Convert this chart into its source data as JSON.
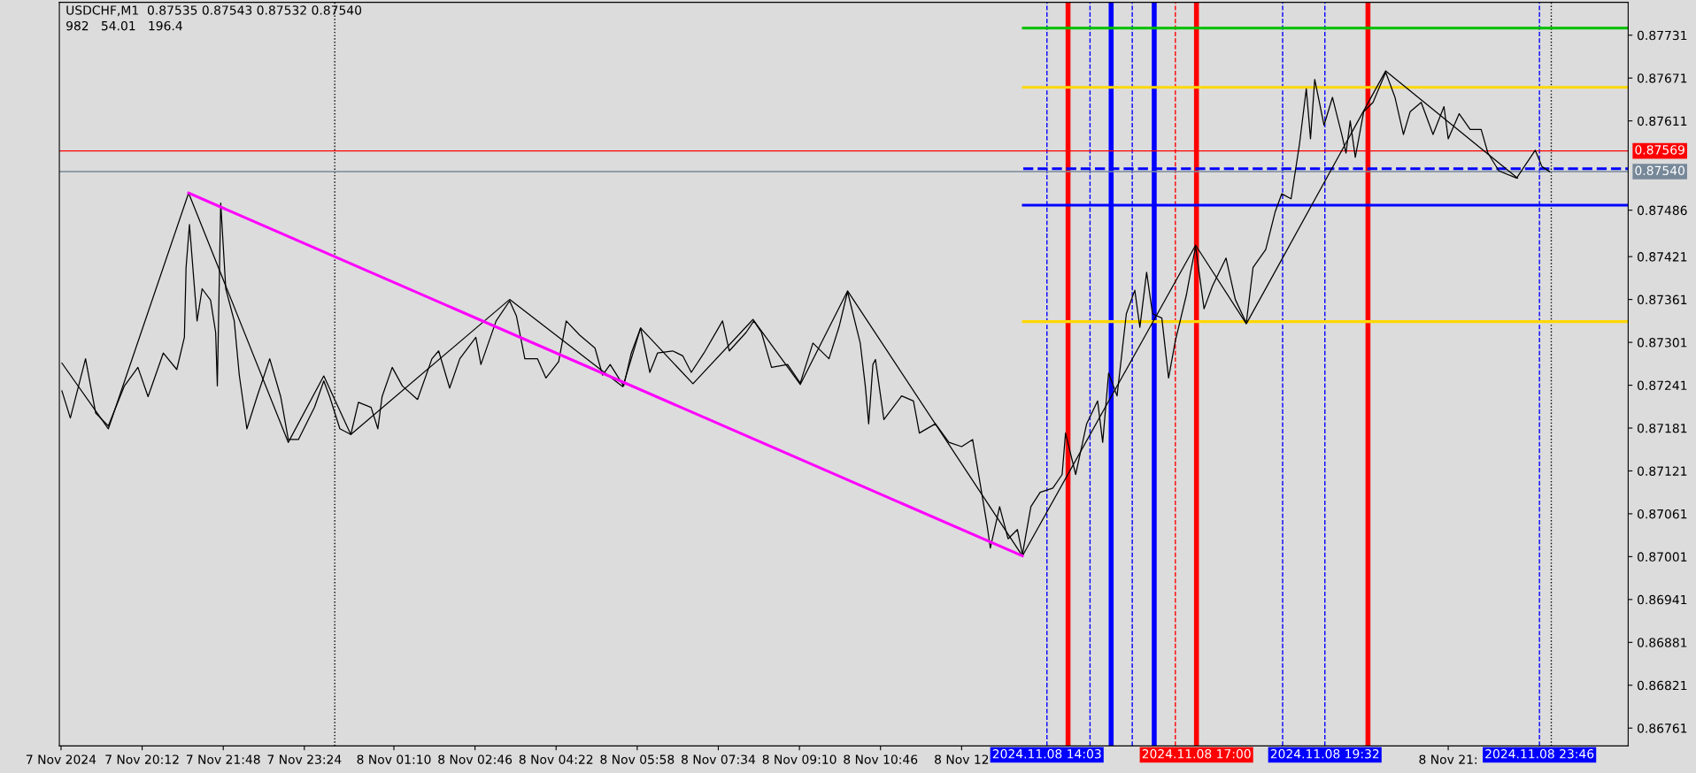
{
  "chart_data": {
    "type": "line",
    "title": "USDCHF,M1  0.87535 0.87543 0.87532 0.87540",
    "subtitle": "982   54.01   196.4",
    "xlim": [
      "2024-11-07T18:34",
      "2024-11-09T01:31"
    ],
    "ylim": [
      0.86736,
      0.87777
    ],
    "xticks": [
      {
        "value": "2024-11-07T18:36",
        "label": "7 Nov 2024"
      },
      {
        "value": "2024-11-07T20:12",
        "label": "7 Nov 20:12"
      },
      {
        "value": "2024-11-07T21:48",
        "label": "7 Nov 21:48"
      },
      {
        "value": "2024-11-07T23:24",
        "label": "7 Nov 23:24"
      },
      {
        "value": "2024-11-08T01:10",
        "label": "8 Nov 01:10"
      },
      {
        "value": "2024-11-08T02:46",
        "label": "8 Nov 02:46"
      },
      {
        "value": "2024-11-08T04:22",
        "label": "8 Nov 04:22"
      },
      {
        "value": "2024-11-08T05:58",
        "label": "8 Nov 05:58"
      },
      {
        "value": "2024-11-08T07:34",
        "label": "8 Nov 07:34"
      },
      {
        "value": "2024-11-08T09:10",
        "label": "8 Nov 09:10"
      },
      {
        "value": "2024-11-08T10:46",
        "label": "8 Nov 10:46"
      },
      {
        "value": "2024-11-08T12:22",
        "label": "8 Nov 12"
      },
      {
        "value": "2024-11-08T21:58",
        "label": "8 Nov 21:"
      }
    ],
    "yticks": [
      0.87731,
      0.87671,
      0.87611,
      0.87486,
      0.87421,
      0.87361,
      0.87301,
      0.87241,
      0.87181,
      0.87121,
      0.87061,
      0.87001,
      0.86941,
      0.86881,
      0.86821,
      0.86761
    ],
    "grid": false,
    "series": [
      {
        "color": "#000000",
        "line_style": "solid",
        "x": [
          "2024-11-07T18:37",
          "2024-11-07T18:47",
          "2024-11-07T19:05",
          "2024-11-07T19:17",
          "2024-11-07T19:32",
          "2024-11-07T19:51",
          "2024-11-07T20:07",
          "2024-11-07T20:19",
          "2024-11-07T20:37",
          "2024-11-07T20:53",
          "2024-11-07T21:02",
          "2024-11-07T21:04",
          "2024-11-07T21:08",
          "2024-11-07T21:17",
          "2024-11-07T21:23",
          "2024-11-07T21:33",
          "2024-11-07T21:39",
          "2024-11-07T21:41",
          "2024-11-07T21:45",
          "2024-11-07T21:51",
          "2024-11-07T22:01",
          "2024-11-07T22:07",
          "2024-11-07T22:16",
          "2024-11-07T22:28",
          "2024-11-07T22:43",
          "2024-11-07T22:56",
          "2024-11-07T23:05",
          "2024-11-07T23:17",
          "2024-11-07T23:36",
          "2024-11-07T23:47",
          "2024-11-07T23:54",
          "2024-11-08T00:06",
          "2024-11-08T00:19",
          "2024-11-08T00:28",
          "2024-11-08T00:43",
          "2024-11-08T00:51",
          "2024-11-08T00:56",
          "2024-11-08T01:08",
          "2024-11-08T01:20",
          "2024-11-08T01:38",
          "2024-11-08T01:55",
          "2024-11-08T02:03",
          "2024-11-08T02:16",
          "2024-11-08T02:28",
          "2024-11-08T02:47",
          "2024-11-08T02:53",
          "2024-11-08T03:11",
          "2024-11-08T03:27",
          "2024-11-08T03:35",
          "2024-11-08T03:45",
          "2024-11-08T04:00",
          "2024-11-08T04:10",
          "2024-11-08T04:25",
          "2024-11-08T04:34",
          "2024-11-08T04:50",
          "2024-11-08T05:08",
          "2024-11-08T05:17",
          "2024-11-08T05:26",
          "2024-11-08T05:42",
          "2024-11-08T05:51",
          "2024-11-08T06:02",
          "2024-11-08T06:13",
          "2024-11-08T06:22",
          "2024-11-08T06:40",
          "2024-11-08T06:52",
          "2024-11-08T07:02",
          "2024-11-08T07:17",
          "2024-11-08T07:39",
          "2024-11-08T07:47",
          "2024-11-08T08:07",
          "2024-11-08T08:16",
          "2024-11-08T08:25",
          "2024-11-08T08:37",
          "2024-11-08T08:56",
          "2024-11-08T09:11",
          "2024-11-08T09:26",
          "2024-11-08T09:45",
          "2024-11-08T09:57",
          "2024-11-08T10:07",
          "2024-11-08T10:22",
          "2024-11-08T10:28",
          "2024-11-08T10:32",
          "2024-11-08T10:37",
          "2024-11-08T10:40",
          "2024-11-08T10:50",
          "2024-11-08T11:11",
          "2024-11-08T11:25",
          "2024-11-08T11:32",
          "2024-11-08T11:51",
          "2024-11-08T12:07",
          "2024-11-08T12:22",
          "2024-11-08T12:35",
          "2024-11-08T12:43",
          "2024-11-08T12:52",
          "2024-11-08T12:56",
          "2024-11-08T13:07",
          "2024-11-08T13:17",
          "2024-11-08T13:28",
          "2024-11-08T13:34",
          "2024-11-08T13:44",
          "2024-11-08T13:55",
          "2024-11-08T14:10",
          "2024-11-08T14:21",
          "2024-11-08T14:25",
          "2024-11-08T14:37",
          "2024-11-08T14:50",
          "2024-11-08T15:03",
          "2024-11-08T15:09",
          "2024-11-08T15:16",
          "2024-11-08T15:26",
          "2024-11-08T15:37",
          "2024-11-08T15:47",
          "2024-11-08T15:53",
          "2024-11-08T16:01",
          "2024-11-08T16:08",
          "2024-11-08T16:19",
          "2024-11-08T16:27",
          "2024-11-08T16:35",
          "2024-11-08T16:48",
          "2024-11-08T16:53",
          "2024-11-08T16:59",
          "2024-11-08T17:09",
          "2024-11-08T17:19",
          "2024-11-08T17:35",
          "2024-11-08T17:46",
          "2024-11-08T17:59",
          "2024-11-08T18:07",
          "2024-11-08T18:22",
          "2024-11-08T18:33",
          "2024-11-08T18:41",
          "2024-11-08T18:52",
          "2024-11-08T19:02",
          "2024-11-08T19:10",
          "2024-11-08T19:15",
          "2024-11-08T19:20",
          "2024-11-08T19:31",
          "2024-11-08T19:41",
          "2024-11-08T19:52",
          "2024-11-08T19:57",
          "2024-11-08T20:02",
          "2024-11-08T20:08",
          "2024-11-08T20:18",
          "2024-11-08T20:29",
          "2024-11-08T20:44",
          "2024-11-08T20:55",
          "2024-11-08T21:05",
          "2024-11-08T21:13",
          "2024-11-08T21:26",
          "2024-11-08T21:40",
          "2024-11-08T21:53",
          "2024-11-08T21:58",
          "2024-11-08T22:11",
          "2024-11-08T22:24",
          "2024-11-08T22:37",
          "2024-11-08T22:45",
          "2024-11-08T22:58",
          "2024-11-08T23:19",
          "2024-11-08T23:28",
          "2024-11-08T23:41",
          "2024-11-08T23:49",
          "2024-11-08T23:58"
        ],
        "values": [
          0.87233,
          0.87195,
          0.87278,
          0.87202,
          0.87184,
          0.8724,
          0.87266,
          0.87225,
          0.87286,
          0.87263,
          0.87308,
          0.87406,
          0.87466,
          0.87331,
          0.87376,
          0.8736,
          0.87315,
          0.8724,
          0.87496,
          0.87376,
          0.87331,
          0.87255,
          0.8718,
          0.87225,
          0.87278,
          0.87225,
          0.87165,
          0.87165,
          0.8721,
          0.87247,
          0.87225,
          0.8718,
          0.87172,
          0.87217,
          0.8721,
          0.8718,
          0.87225,
          0.87266,
          0.8724,
          0.87221,
          0.87278,
          0.87289,
          0.87237,
          0.87278,
          0.87308,
          0.8727,
          0.87331,
          0.87359,
          0.87338,
          0.87278,
          0.87278,
          0.87251,
          0.87274,
          0.87331,
          0.87311,
          0.87293,
          0.87255,
          0.8727,
          0.8724,
          0.87286,
          0.87321,
          0.87259,
          0.87286,
          0.87289,
          0.87282,
          0.87259,
          0.87286,
          0.87331,
          0.87289,
          0.87315,
          0.87331,
          0.87315,
          0.87266,
          0.8727,
          0.87244,
          0.873,
          0.87278,
          0.87323,
          0.87372,
          0.873,
          0.8724,
          0.87187,
          0.8727,
          0.87277,
          0.87193,
          0.87226,
          0.87219,
          0.87174,
          0.87187,
          0.87161,
          0.87155,
          0.87165,
          0.8711,
          0.87046,
          0.87013,
          0.87071,
          0.87026,
          0.87039,
          0.87004,
          0.87071,
          0.87091,
          0.87097,
          0.87116,
          0.87174,
          0.87116,
          0.87187,
          0.87219,
          0.87161,
          0.87258,
          0.87226,
          0.87341,
          0.87374,
          0.87322,
          0.87399,
          0.87341,
          0.87335,
          0.87251,
          0.87303,
          0.87367,
          0.87399,
          0.87435,
          0.87348,
          0.8738,
          0.87419,
          0.87361,
          0.87328,
          0.87406,
          0.87431,
          0.87483,
          0.87509,
          0.87502,
          0.87579,
          0.87656,
          0.87586,
          0.87669,
          0.87605,
          0.87644,
          0.87592,
          0.87566,
          0.87611,
          0.8756,
          0.87624,
          0.87637,
          0.87679,
          0.87644,
          0.87592,
          0.87624,
          0.87637,
          0.87592,
          0.87631,
          0.87586,
          0.87621,
          0.87599,
          0.87599,
          0.87566,
          0.87541,
          0.87531,
          0.87547,
          0.8757,
          0.87547,
          0.8754
        ]
      },
      {
        "color": "#000000",
        "line_style": "solid",
        "x": [
          "2024-11-07T18:37",
          "2024-11-07T19:32",
          "2024-11-07T21:07",
          "2024-11-07T23:05",
          "2024-11-07T23:47",
          "2024-11-08T00:19",
          "2024-11-08T03:27",
          "2024-11-08T05:41",
          "2024-11-08T06:02",
          "2024-11-08T07:04",
          "2024-11-08T08:15",
          "2024-11-08T09:11",
          "2024-11-08T10:07",
          "2024-11-08T13:34",
          "2024-11-08T16:59",
          "2024-11-08T17:59",
          "2024-11-08T20:44",
          "2024-11-08T23:20"
        ],
        "values": [
          0.87272,
          0.8718,
          0.8751,
          0.87161,
          0.87254,
          0.87172,
          0.87361,
          0.87239,
          0.87321,
          0.87243,
          0.87333,
          0.87242,
          0.87373,
          0.87002,
          0.87437,
          0.87327,
          0.87681,
          0.87531
        ]
      },
      {
        "color": "#ff00ff",
        "line_style": "solid",
        "x": [
          "2024-11-07T21:07",
          "2024-11-08T13:34"
        ],
        "values": [
          0.8751,
          0.87002
        ]
      },
      {
        "color": "#00c000",
        "line_style": "solid",
        "x": [
          "2024-11-08T13:35",
          "2024-11-09T01:31"
        ],
        "values": [
          0.87741,
          0.87741
        ]
      },
      {
        "color": "#ffd700",
        "line_style": "solid",
        "x": [
          "2024-11-08T13:35",
          "2024-11-09T01:31"
        ],
        "values": [
          0.87658,
          0.87658
        ]
      },
      {
        "color": "#0000ff",
        "line_style": "dashed",
        "x": [
          "2024-11-08T13:35",
          "2024-11-09T01:31"
        ],
        "values": [
          0.87544,
          0.87544
        ]
      },
      {
        "color": "#0000ff",
        "line_style": "solid",
        "x": [
          "2024-11-08T13:35",
          "2024-11-09T01:31"
        ],
        "values": [
          0.87493,
          0.87493
        ]
      },
      {
        "color": "#ffd700",
        "line_style": "solid",
        "x": [
          "2024-11-08T13:35",
          "2024-11-09T01:31"
        ],
        "values": [
          0.8733,
          0.8733
        ]
      }
    ],
    "ref_lines": [
      {
        "axis": "x",
        "value": "2024-11-08T00:00",
        "color": "#000000",
        "line_style": "dotted"
      },
      {
        "axis": "x",
        "value": "2024-11-08T14:03",
        "color": "#0000ff",
        "line_style": "dashed",
        "label": "2024.11.08 14:03"
      },
      {
        "axis": "x",
        "value": "2024-11-08T14:28",
        "color": "#ff0000",
        "line_style": "solid"
      },
      {
        "axis": "x",
        "value": "2024-11-08T14:54",
        "color": "#0000ff",
        "line_style": "dashed"
      },
      {
        "axis": "x",
        "value": "2024-11-08T15:19",
        "color": "#0000ff",
        "line_style": "solid"
      },
      {
        "axis": "x",
        "value": "2024-11-08T15:44",
        "color": "#0000ff",
        "line_style": "dashed"
      },
      {
        "axis": "x",
        "value": "2024-11-08T16:10",
        "color": "#0000ff",
        "line_style": "solid"
      },
      {
        "axis": "x",
        "value": "2024-11-08T16:35",
        "color": "#ff0000",
        "line_style": "dashed"
      },
      {
        "axis": "x",
        "value": "2024-11-08T17:00",
        "color": "#ff0000",
        "line_style": "solid",
        "label": "2024.11.08 17:00"
      },
      {
        "axis": "x",
        "value": "2024-11-08T18:42",
        "color": "#0000ff",
        "line_style": "dashed"
      },
      {
        "axis": "x",
        "value": "2024-11-08T19:32",
        "color": "#0000ff",
        "line_style": "dashed",
        "label": "2024.11.08 19:32"
      },
      {
        "axis": "x",
        "value": "2024-11-08T20:23",
        "color": "#ff0000",
        "line_style": "solid"
      },
      {
        "axis": "x",
        "value": "2024-11-08T23:46",
        "color": "#0000ff",
        "line_style": "dashed",
        "label": "2024.11.08 23:46"
      },
      {
        "axis": "x",
        "value": "2024-11-09T00:00",
        "color": "#000000",
        "line_style": "dotted"
      },
      {
        "axis": "y",
        "value": 0.87569,
        "color": "#ff0000",
        "line_style": "solid",
        "label": "0.87569"
      },
      {
        "axis": "y",
        "value": 0.8754,
        "color": "#778899",
        "line_style": "solid",
        "label": "0.87540"
      }
    ]
  }
}
